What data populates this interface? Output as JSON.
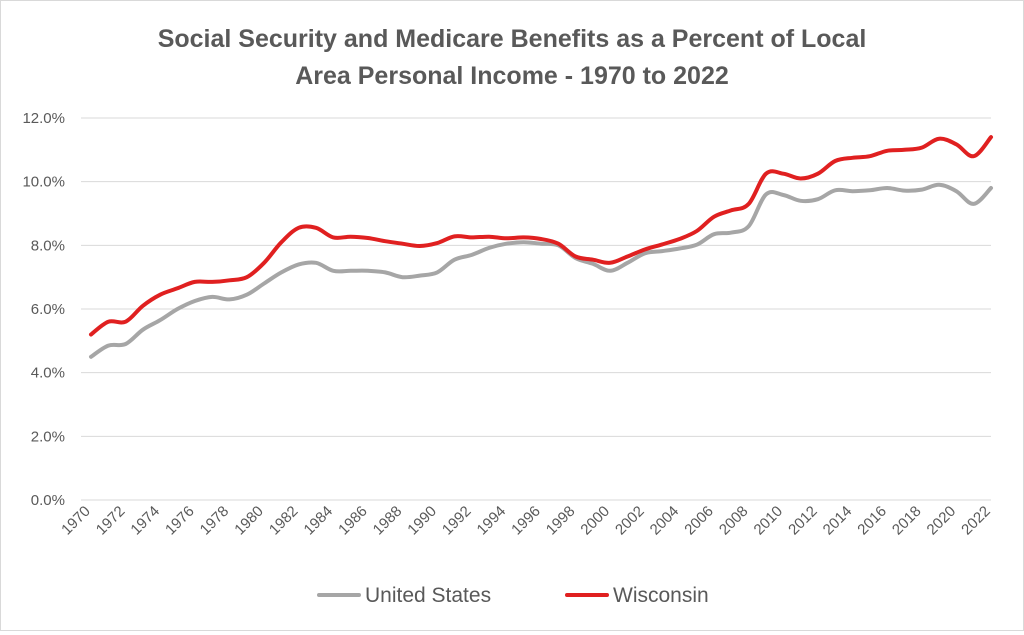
{
  "chart_data": {
    "type": "line",
    "title_lines": [
      "Social Security and Medicare Benefits as a Percent of Local",
      "Area Personal Income - 1970 to 2022"
    ],
    "xlabel": "",
    "ylabel": "",
    "ylim": [
      0,
      12
    ],
    "y_ticks": [
      "0.0%",
      "2.0%",
      "4.0%",
      "6.0%",
      "8.0%",
      "10.0%",
      "12.0%"
    ],
    "x": [
      1970,
      1971,
      1972,
      1973,
      1974,
      1975,
      1976,
      1977,
      1978,
      1979,
      1980,
      1981,
      1982,
      1983,
      1984,
      1985,
      1986,
      1987,
      1988,
      1989,
      1990,
      1991,
      1992,
      1993,
      1994,
      1995,
      1996,
      1997,
      1998,
      1999,
      2000,
      2001,
      2002,
      2003,
      2004,
      2005,
      2006,
      2007,
      2008,
      2009,
      2010,
      2011,
      2012,
      2013,
      2014,
      2015,
      2016,
      2017,
      2018,
      2019,
      2020,
      2021,
      2022
    ],
    "x_tick_labels": [
      "1970",
      "1972",
      "1974",
      "1976",
      "1978",
      "1980",
      "1982",
      "1984",
      "1986",
      "1988",
      "1990",
      "1992",
      "1994",
      "1996",
      "1998",
      "2000",
      "2002",
      "2004",
      "2006",
      "2008",
      "2010",
      "2012",
      "2014",
      "2016",
      "2018",
      "2020",
      "2022"
    ],
    "grid": true,
    "legend_position": "bottom",
    "series": [
      {
        "name": "United States",
        "color": "#a6a6a6",
        "values": [
          4.5,
          4.85,
          4.9,
          5.35,
          5.65,
          6.0,
          6.25,
          6.38,
          6.3,
          6.45,
          6.8,
          7.15,
          7.4,
          7.45,
          7.2,
          7.2,
          7.2,
          7.15,
          7.0,
          7.05,
          7.15,
          7.55,
          7.7,
          7.92,
          8.05,
          8.1,
          8.05,
          8.0,
          7.6,
          7.42,
          7.2,
          7.45,
          7.75,
          7.82,
          7.9,
          8.02,
          8.35,
          8.4,
          8.6,
          9.6,
          9.58,
          9.4,
          9.45,
          9.73,
          9.7,
          9.73,
          9.8,
          9.72,
          9.75,
          9.9,
          9.7,
          9.3,
          9.8
        ]
      },
      {
        "name": "Wisconsin",
        "color": "#e02020",
        "values": [
          5.2,
          5.6,
          5.6,
          6.1,
          6.45,
          6.65,
          6.85,
          6.85,
          6.9,
          7.0,
          7.45,
          8.1,
          8.55,
          8.55,
          8.25,
          8.27,
          8.23,
          8.13,
          8.05,
          7.98,
          8.07,
          8.28,
          8.25,
          8.27,
          8.22,
          8.25,
          8.2,
          8.05,
          7.65,
          7.55,
          7.45,
          7.65,
          7.87,
          8.03,
          8.2,
          8.45,
          8.9,
          9.1,
          9.3,
          10.25,
          10.25,
          10.1,
          10.25,
          10.65,
          10.75,
          10.8,
          10.97,
          11.0,
          11.07,
          11.35,
          11.17,
          10.8,
          11.4
        ]
      }
    ]
  }
}
